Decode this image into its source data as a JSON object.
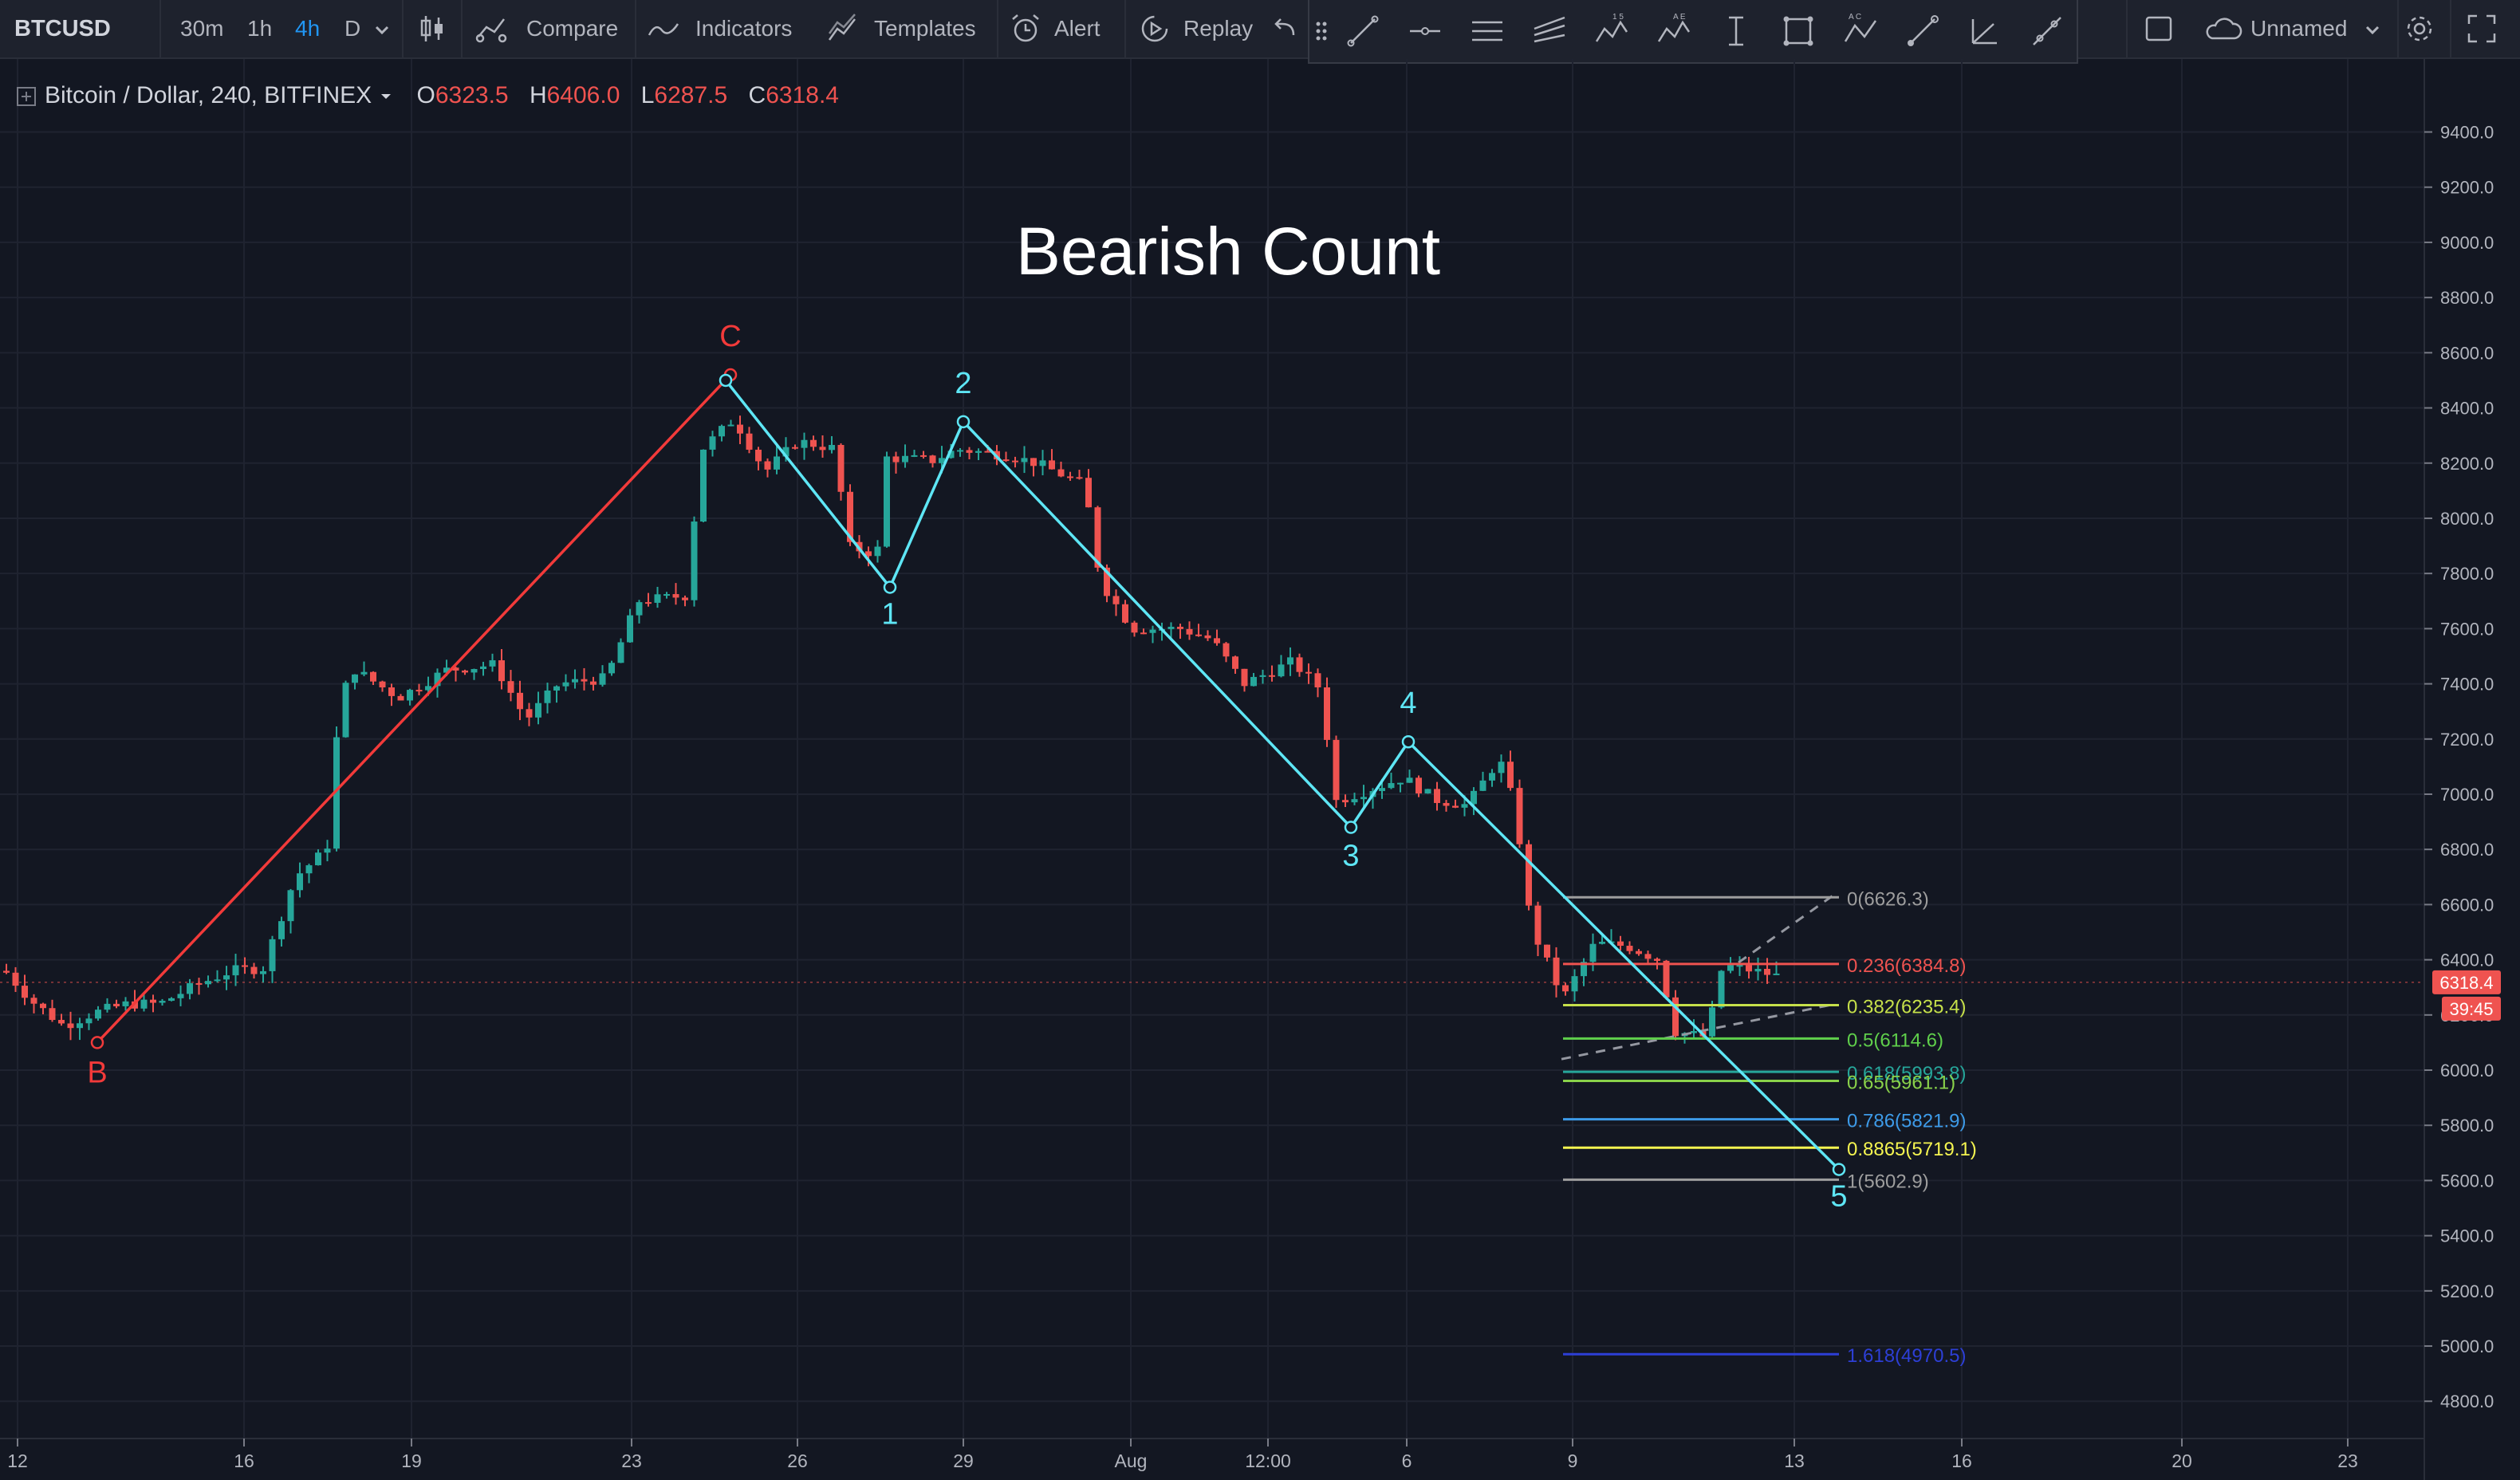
{
  "toolbar": {
    "symbol": "BTCUSD",
    "intervals": [
      "30m",
      "1h",
      "4h",
      "D"
    ],
    "active_interval": "4h",
    "compare_label": "Compare",
    "indicators_label": "Indicators",
    "templates_label": "Templates",
    "alert_label": "Alert",
    "replay_label": "Replay",
    "layout_name": "Unnamed"
  },
  "legend": {
    "name": "Bitcoin / Dollar, 240, BITFINEX",
    "open_key": "O",
    "open": "6323.5",
    "high_key": "H",
    "high": "6406.0",
    "low_key": "L",
    "low": "6287.5",
    "close_key": "C",
    "close": "6318.4"
  },
  "chart_title": "Bearish Count",
  "price_axis": {
    "ticks": [
      "9400.0",
      "9200.0",
      "9000.0",
      "8800.0",
      "8600.0",
      "8400.0",
      "8200.0",
      "8000.0",
      "7800.0",
      "7600.0",
      "7400.0",
      "7200.0",
      "7000.0",
      "6800.0",
      "6600.0",
      "6400.0",
      "6200.0",
      "6000.0",
      "5800.0",
      "5600.0",
      "5400.0",
      "5200.0",
      "5000.0",
      "4800.0"
    ],
    "last_price": "6318.4",
    "countdown": "39:45"
  },
  "time_axis": {
    "labels": [
      "12",
      "16",
      "19",
      "23",
      "26",
      "29",
      "Aug",
      "12:00",
      "6",
      "9",
      "13",
      "16",
      "20",
      "23"
    ]
  },
  "colors": {
    "background": "#131722",
    "up": "#26a69a",
    "down": "#ef5350",
    "wave_impulse": "#5ee6f5",
    "wave_corrective": "#f23a3a"
  },
  "chart_data": {
    "type": "candlestick",
    "title": "Bearish Count",
    "symbol": "Bitcoin / Dollar, 240, BITFINEX",
    "ylim": [
      4740,
      9520
    ],
    "wave_corrective": [
      {
        "label": "B",
        "price": 6100
      },
      {
        "label": "C",
        "price": 8520
      }
    ],
    "wave_impulse": [
      {
        "label": "",
        "price": 8500
      },
      {
        "label": "1",
        "price": 7750
      },
      {
        "label": "2",
        "price": 8350
      },
      {
        "label": "3",
        "price": 6880
      },
      {
        "label": "4",
        "price": 7190
      },
      {
        "label": "5",
        "price": 5640
      }
    ],
    "fib_levels": [
      {
        "label": "0(6626.3)",
        "value": 6626.3,
        "color": "#9e9e9e"
      },
      {
        "label": "0.236(6384.8)",
        "value": 6384.8,
        "color": "#ef5350"
      },
      {
        "label": "0.382(6235.4)",
        "value": 6235.4,
        "color": "#c6e04a"
      },
      {
        "label": "0.5(6114.6)",
        "value": 6114.6,
        "color": "#5fcf4b"
      },
      {
        "label": "0.618(5993.8)",
        "value": 5993.8,
        "color": "#26a69a"
      },
      {
        "label": "0.65(5961.1)",
        "value": 5961.1,
        "color": "#8ad24a"
      },
      {
        "label": "0.786(5821.9)",
        "value": 5821.9,
        "color": "#3d9be9"
      },
      {
        "label": "0.8865(5719.1)",
        "value": 5719.1,
        "color": "#f5f550"
      },
      {
        "label": "1(5602.9)",
        "value": 5602.9,
        "color": "#9e9e9e"
      },
      {
        "label": "1.618(4970.5)",
        "value": 4970.5,
        "color": "#2d3fd6"
      }
    ]
  }
}
